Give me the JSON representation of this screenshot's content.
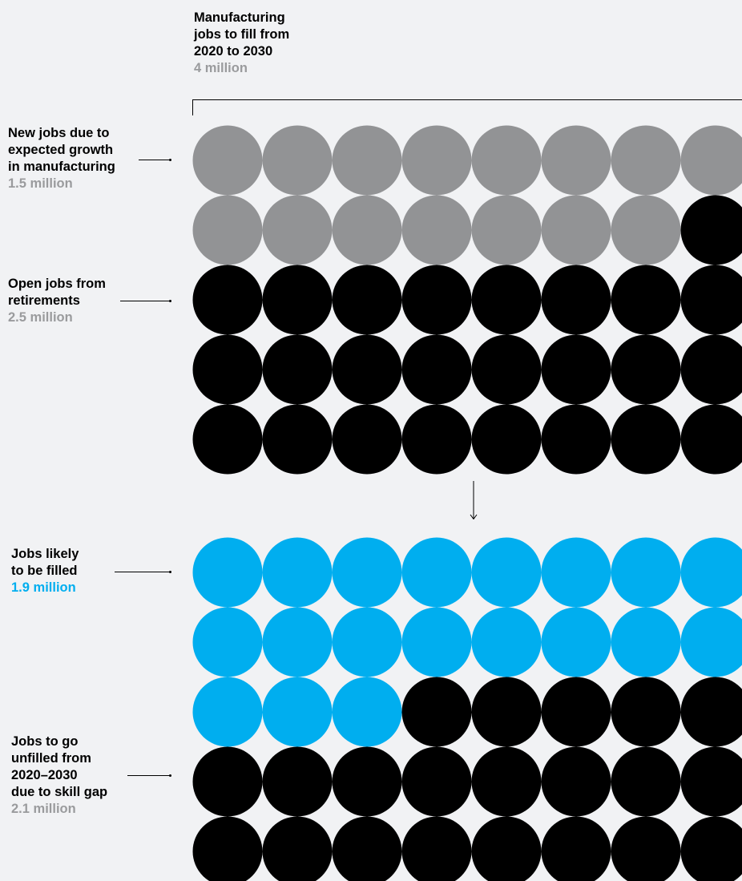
{
  "title": "Manufacturing\njobs to fill from\n2020 to 2030",
  "total": "4 million",
  "colors": {
    "background": "#f1f2f4",
    "growth": "#929395",
    "retirement": "#000000",
    "filled": "#00aeef",
    "unfilled": "#000000",
    "value_gray": "#9a9b9d",
    "value_blue": "#00aeef"
  },
  "labels": {
    "new_jobs": {
      "text": "New jobs due to\nexpected growth\nin manufacturing",
      "value": "1.5 million"
    },
    "retirements": {
      "text": "Open jobs from\nretirements",
      "value": "2.5 million"
    },
    "filled": {
      "text": "Jobs likely\nto be filled",
      "value": "1.9 million"
    },
    "unfilled": {
      "text": "Jobs to go\nunfilled from\n2020–2030\ndue to skill gap",
      "value": "2.1 million"
    }
  },
  "chart_data": [
    {
      "type": "dot-matrix",
      "columns": 8,
      "rows": 5,
      "total_dots": 40,
      "series": [
        {
          "name": "New jobs due to expected growth in manufacturing",
          "dots": 15,
          "color": "#929395"
        },
        {
          "name": "Open jobs from retirements",
          "dots": 25,
          "color": "#000000"
        }
      ]
    },
    {
      "type": "dot-matrix",
      "columns": 8,
      "rows": 5,
      "total_dots": 40,
      "series": [
        {
          "name": "Jobs likely to be filled",
          "dots": 19,
          "color": "#00aeef"
        },
        {
          "name": "Jobs to go unfilled from 2020–2030 due to skill gap",
          "dots": 21,
          "color": "#000000"
        }
      ]
    }
  ]
}
